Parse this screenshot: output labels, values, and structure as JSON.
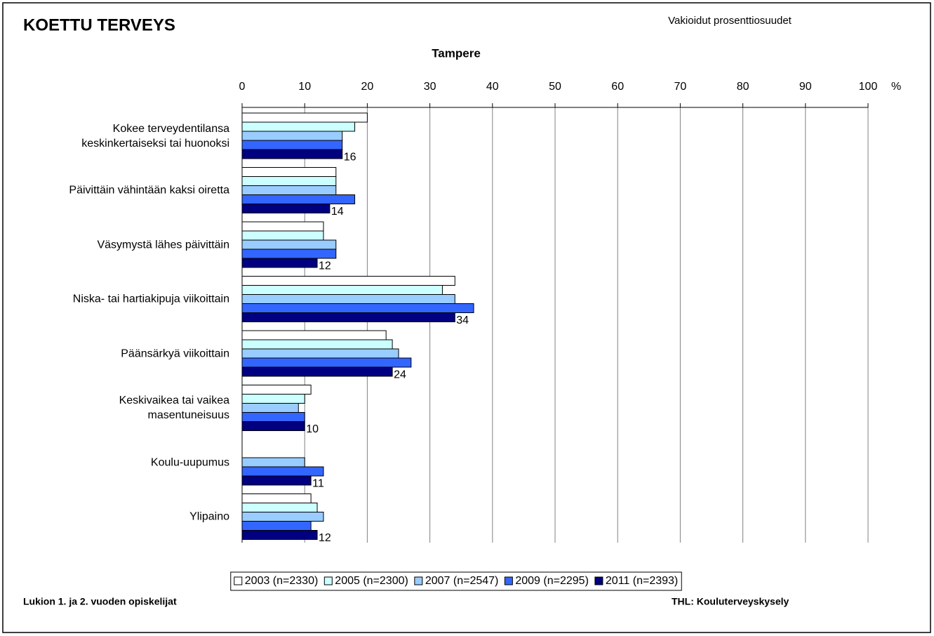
{
  "chart_data": {
    "type": "hbar",
    "title": "KOETTU TERVEYS",
    "subtitle": "Vakioidut prosenttiosuudet",
    "chart_title": "Tampere",
    "xlabel": "%",
    "categories": [
      "Kokee terveydentilansa\nkeskinkertaiseksi tai huonoksi",
      "Päivittäin vähintään kaksi oiretta",
      "Väsymystä lähes päivittäin",
      "Niska- tai hartiakipuja viikoittain",
      "Päänsärkyä viikoittain",
      "Keskivaikea tai vaikea\nmasentuneisuus",
      "Koulu-uupumus",
      "Ylipaino"
    ],
    "series": [
      {
        "name": "2003 (n=2330)",
        "color": "#ffffff",
        "values": [
          20,
          15,
          13,
          34,
          23,
          11,
          null,
          11
        ]
      },
      {
        "name": "2005 (n=2300)",
        "color": "#ccffff",
        "values": [
          18,
          15,
          13,
          32,
          24,
          10,
          null,
          12
        ]
      },
      {
        "name": "2007 (n=2547)",
        "color": "#99ccff",
        "values": [
          16,
          15,
          15,
          34,
          25,
          9,
          10,
          13
        ]
      },
      {
        "name": "2009 (n=2295)",
        "color": "#3366ff",
        "values": [
          16,
          18,
          15,
          37,
          27,
          10,
          13,
          11
        ]
      },
      {
        "name": "2011 (n=2393)",
        "color": "#000080",
        "values": [
          16,
          14,
          12,
          34,
          24,
          10,
          11,
          12
        ],
        "show_labels": true
      }
    ],
    "xlim": [
      0,
      100
    ],
    "xticks": [
      0,
      10,
      20,
      30,
      40,
      50,
      60,
      70,
      80,
      90,
      100
    ],
    "grid": true,
    "legend": "bottom",
    "footer_left": "Lukion 1. ja 2. vuoden opiskelijat",
    "footer_right": "THL: Kouluterveyskysely"
  }
}
